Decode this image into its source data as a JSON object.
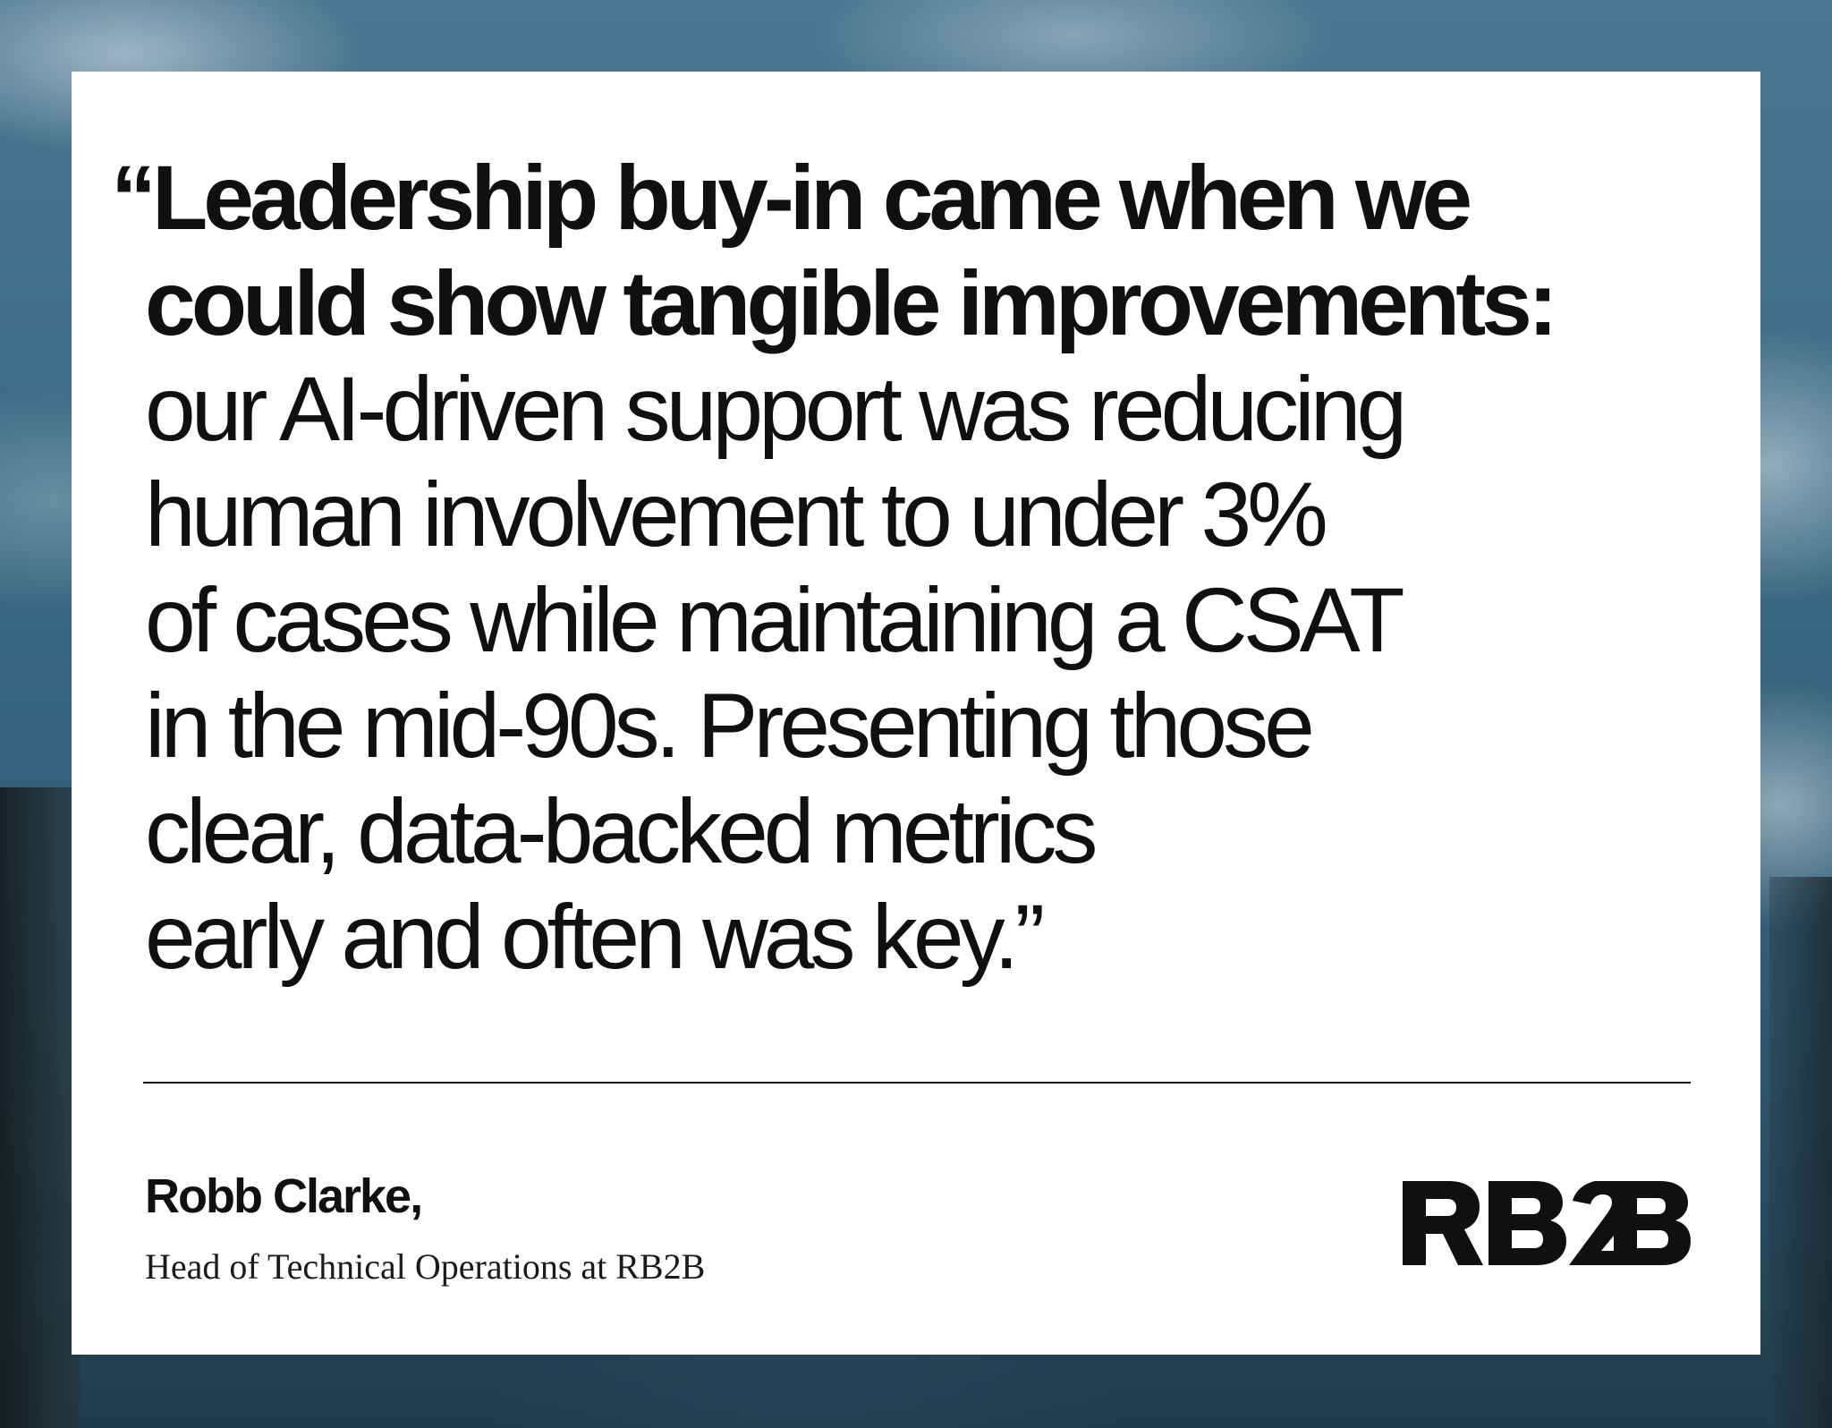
{
  "quote": {
    "bold_lines": [
      "“Leadership buy-in came when we",
      "could show tangible improvements:"
    ],
    "regular_lines": [
      "our AI-driven support was reducing",
      "human involvement to under 3%",
      "of cases while maintaining a CSAT",
      "in the mid-90s. Presenting those",
      "clear, data-backed metrics",
      "early and often was key.”"
    ]
  },
  "author": {
    "name": "Robb Clarke,",
    "title": "Head of Technical Operations at RB2B"
  },
  "logo": {
    "text": "RB2B",
    "icon": "rb2b-logo-icon"
  },
  "colors": {
    "text": "#111010",
    "card": "#ffffff",
    "background": "#3f6a82"
  }
}
